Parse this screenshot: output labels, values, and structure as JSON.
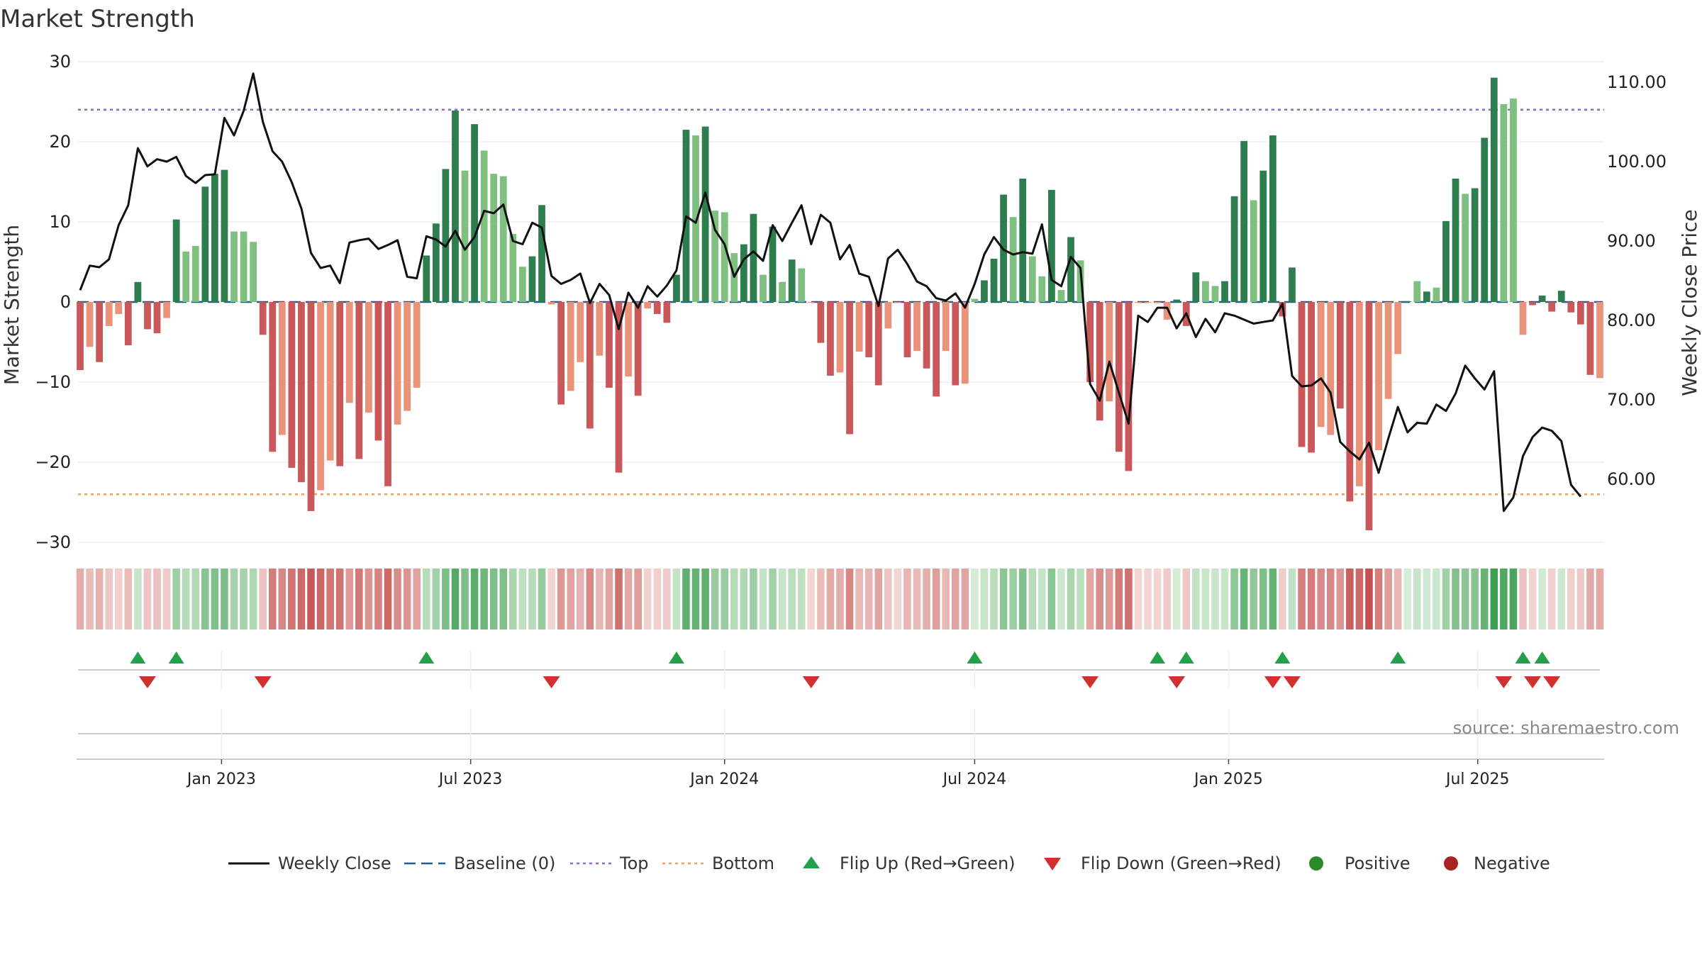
{
  "colors": {
    "pos_strong": "#2e7d4f",
    "pos_light": "#7fbf7f",
    "neg_strong": "#c9585a",
    "neg_light": "#e8937a",
    "line": "#111111",
    "baseline": "#1f5f8b",
    "top": "#8e6bc9",
    "bottom": "#f0a060",
    "flip_up": "#22a04a",
    "flip_down": "#d03030",
    "positive_dot": "#2a8a2a",
    "negative_dot": "#aa2222",
    "grid": "#e6e6e6",
    "source": "#888888"
  },
  "chart_data": {
    "type": "bar",
    "title": "Market Strength",
    "ylabel_left": "Market Strength",
    "ylabel_right": "Weekly Close Price",
    "source": "source: sharemaestro.com",
    "ylim_left": [
      -33,
      32
    ],
    "yticks_left": [
      {
        "v": 30,
        "label": "30"
      },
      {
        "v": 20,
        "label": "20"
      },
      {
        "v": 10,
        "label": "10"
      },
      {
        "v": 0,
        "label": "0"
      },
      {
        "v": -10,
        "label": "−10"
      },
      {
        "v": -20,
        "label": "−20"
      },
      {
        "v": -30,
        "label": "−30"
      }
    ],
    "ylim_right": [
      50,
      113
    ],
    "yticks_right": [
      {
        "v": 110,
        "label": "110.00"
      },
      {
        "v": 100,
        "label": "100.00"
      },
      {
        "v": 90,
        "label": "90.00"
      },
      {
        "v": 80,
        "label": "80.00"
      },
      {
        "v": 70,
        "label": "70.00"
      },
      {
        "v": 60,
        "label": "60.00"
      }
    ],
    "top_level": 24,
    "bottom_level": -24,
    "start_week": 0,
    "end_week": 158,
    "xticks": [
      {
        "week": 14.7,
        "label": "Jan 2023"
      },
      {
        "week": 40.6,
        "label": "Jul 2023"
      },
      {
        "week": 67.0,
        "label": "Jan 2024"
      },
      {
        "week": 93.0,
        "label": "Jul 2024"
      },
      {
        "week": 119.4,
        "label": "Jan 2025"
      },
      {
        "week": 145.3,
        "label": "Jul 2025"
      }
    ],
    "strength": [
      -8.5,
      -5.6,
      -7.5,
      -3.0,
      -1.5,
      -5.4,
      2.5,
      -3.4,
      -3.9,
      -2.0,
      10.3,
      6.3,
      7.0,
      14.4,
      16.0,
      16.5,
      8.8,
      8.8,
      7.5,
      -4.1,
      -18.7,
      -16.6,
      -20.7,
      -22.5,
      -26.1,
      -23.5,
      -19.8,
      -20.5,
      -12.6,
      -19.6,
      -13.8,
      -17.3,
      -23.0,
      -15.3,
      -13.6,
      -10.7,
      5.8,
      9.8,
      16.6,
      23.9,
      16.4,
      22.2,
      18.9,
      16.0,
      15.7,
      8.5,
      4.4,
      5.7,
      12.1,
      -0.3,
      -12.8,
      -11.1,
      -7.5,
      -15.8,
      -6.7,
      -10.7,
      -21.3,
      -9.3,
      -11.7,
      -0.8,
      -1.5,
      -2.6,
      3.4,
      21.5,
      20.8,
      21.9,
      11.4,
      11.2,
      6.1,
      7.2,
      11.0,
      3.4,
      9.4,
      2.5,
      5.3,
      4.2,
      -0.1,
      -5.1,
      -9.2,
      -8.8,
      -16.5,
      -6.2,
      -6.9,
      -10.4,
      -3.3,
      -0.1,
      -6.9,
      -6.1,
      -8.3,
      -11.8,
      -6.1,
      -10.4,
      -10.2,
      0.4,
      2.7,
      5.4,
      13.4,
      10.6,
      15.4,
      5.7,
      3.2,
      14.0,
      1.5,
      8.1,
      5.2,
      -10.0,
      -14.8,
      -12.4,
      -18.7,
      -21.1,
      -0.1,
      -0.1,
      -0.1,
      -2.2,
      0.3,
      -3.0,
      3.7,
      2.6,
      2.0,
      2.6,
      13.2,
      20.1,
      12.7,
      16.4,
      20.8,
      -1.8,
      4.3,
      -18.1,
      -18.8,
      -15.6,
      -16.6,
      -13.3,
      -24.9,
      -23.0,
      -28.5,
      -18.5,
      -12.1,
      -6.5,
      0.1,
      2.6,
      1.3,
      1.8,
      10.1,
      15.4,
      13.5,
      14.2,
      20.5,
      28.0,
      24.7,
      25.4,
      -4.1,
      -0.4,
      0.8,
      -1.2,
      1.4,
      -1.3,
      -2.8,
      -9.1,
      -9.5
    ],
    "weekly_close": [
      83.8,
      86.9,
      86.7,
      87.7,
      92.0,
      94.5,
      101.7,
      99.4,
      100.3,
      100.0,
      100.6,
      98.2,
      97.3,
      98.3,
      98.4,
      105.5,
      103.3,
      106.4,
      111.1,
      105.0,
      101.3,
      100.0,
      97.4,
      94.1,
      88.5,
      86.6,
      86.9,
      84.7,
      89.8,
      90.1,
      90.3,
      89.0,
      89.5,
      90.1,
      85.5,
      85.3,
      90.6,
      90.2,
      89.3,
      91.3,
      88.9,
      90.5,
      93.8,
      93.5,
      94.6,
      90.0,
      89.6,
      92.3,
      91.7,
      85.6,
      84.6,
      85.1,
      85.9,
      82.2,
      84.6,
      83.2,
      78.9,
      83.5,
      81.6,
      84.3,
      83.0,
      84.4,
      86.3,
      93.1,
      92.3,
      96.1,
      91.4,
      89.6,
      85.5,
      87.7,
      88.7,
      87.5,
      92.0,
      90.0,
      92.3,
      94.5,
      89.6,
      93.3,
      92.3,
      87.7,
      89.5,
      85.9,
      85.5,
      81.8,
      87.8,
      88.9,
      87.1,
      84.9,
      84.3,
      82.8,
      82.5,
      83.4,
      81.6,
      84.6,
      88.3,
      90.5,
      88.9,
      88.3,
      88.6,
      88.4,
      92.1,
      85.1,
      84.3,
      88.0,
      86.6,
      72.0,
      69.9,
      74.8,
      70.9,
      67.0,
      80.6,
      79.8,
      81.6,
      81.6,
      79.0,
      80.9,
      77.9,
      80.2,
      78.5,
      80.9,
      80.6,
      80.1,
      79.6,
      79.8,
      80.0,
      82.1,
      73.0,
      71.7,
      71.8,
      72.7,
      70.9,
      64.7,
      63.5,
      62.5,
      64.6,
      60.8,
      65.1,
      69.1,
      65.9,
      67.1,
      67.0,
      69.4,
      68.6,
      70.8,
      74.3,
      72.7,
      71.3,
      73.6,
      56.0,
      57.7,
      62.9,
      65.3,
      66.5,
      66.1,
      64.8,
      59.3,
      57.8
    ],
    "bar_shade": [
      0.85,
      0.45,
      0.75,
      0.45,
      0.45,
      0.75,
      0.85,
      0.75,
      0.75,
      0.45,
      0.85,
      0.45,
      0.45,
      0.85,
      0.85,
      0.85,
      0.45,
      0.45,
      0.45,
      0.85,
      0.85,
      0.45,
      0.85,
      0.85,
      0.85,
      0.45,
      0.45,
      0.85,
      0.45,
      0.85,
      0.45,
      0.85,
      0.85,
      0.45,
      0.45,
      0.45,
      0.85,
      0.85,
      0.85,
      0.85,
      0.45,
      0.85,
      0.45,
      0.45,
      0.45,
      0.45,
      0.45,
      0.85,
      0.85,
      0.45,
      0.85,
      0.45,
      0.45,
      0.85,
      0.45,
      0.85,
      0.85,
      0.45,
      0.85,
      0.45,
      0.85,
      0.85,
      0.85,
      0.85,
      0.45,
      0.85,
      0.45,
      0.45,
      0.45,
      0.85,
      0.85,
      0.45,
      0.85,
      0.45,
      0.85,
      0.45,
      0.45,
      0.85,
      0.85,
      0.45,
      0.85,
      0.45,
      0.85,
      0.85,
      0.45,
      0.45,
      0.85,
      0.45,
      0.85,
      0.85,
      0.45,
      0.85,
      0.45,
      0.45,
      0.85,
      0.85,
      0.85,
      0.45,
      0.85,
      0.45,
      0.45,
      0.85,
      0.45,
      0.85,
      0.45,
      0.85,
      0.85,
      0.45,
      0.85,
      0.85,
      0.45,
      0.45,
      0.45,
      0.45,
      0.85,
      0.85,
      0.85,
      0.45,
      0.45,
      0.85,
      0.85,
      0.85,
      0.45,
      0.85,
      0.85,
      0.85,
      0.85,
      0.85,
      0.85,
      0.45,
      0.45,
      0.85,
      0.85,
      0.45,
      0.85,
      0.45,
      0.45,
      0.45,
      0.85,
      0.45,
      0.85,
      0.45,
      0.85,
      0.85,
      0.45,
      0.85,
      0.85,
      0.85,
      0.45,
      0.45,
      0.45,
      0.85,
      0.85,
      0.85,
      0.85,
      0.85,
      0.85,
      0.85
    ],
    "flip_up_weeks": [
      6,
      10,
      36,
      62,
      93,
      112,
      115,
      125,
      137,
      150,
      152
    ],
    "flip_down_weeks": [
      7,
      19,
      49,
      76,
      105,
      114,
      124,
      126,
      148,
      151,
      153
    ],
    "legend": [
      {
        "key": "weekly_close",
        "label": "Weekly Close"
      },
      {
        "key": "baseline",
        "label": "Baseline (0)"
      },
      {
        "key": "top",
        "label": "Top"
      },
      {
        "key": "bottom",
        "label": "Bottom"
      },
      {
        "key": "flip_up",
        "label": "Flip Up (Red→Green)"
      },
      {
        "key": "flip_down",
        "label": "Flip Down (Green→Red)"
      },
      {
        "key": "positive",
        "label": "Positive"
      },
      {
        "key": "negative",
        "label": "Negative"
      }
    ]
  }
}
